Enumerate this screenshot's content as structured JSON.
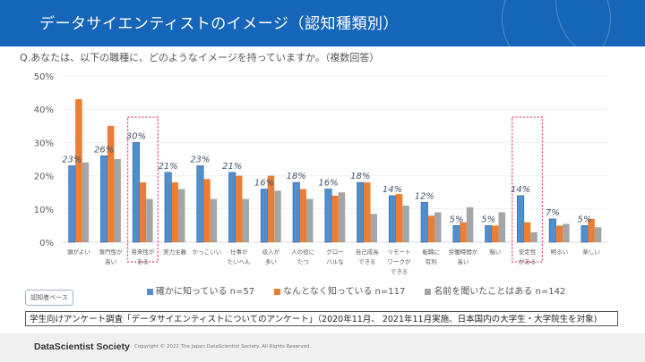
{
  "header": {
    "title": "データサイエンティストのイメージ（認知種類別）"
  },
  "question": "Q.あなたは、以下の職種に、どのようなイメージを持っていますか。（複数回答）",
  "chart_data": {
    "type": "bar",
    "title": "",
    "xlabel": "",
    "ylabel": "",
    "ylim": [
      0,
      50
    ],
    "yticks": [
      "0%",
      "10%",
      "20%",
      "30%",
      "40%",
      "50%"
    ],
    "grid": true,
    "legend_position": "bottom",
    "categories": [
      [
        "頭がよい"
      ],
      [
        "専門性が",
        "高い"
      ],
      [
        "将来性が",
        "ある"
      ],
      [
        "実力主義"
      ],
      [
        "かっこいい"
      ],
      [
        "仕事が",
        "たいへん"
      ],
      [
        "収入が",
        "多い"
      ],
      [
        "人の役に",
        "たつ"
      ],
      [
        "グロー",
        "バルな"
      ],
      [
        "自己成長",
        "できる"
      ],
      [
        "リモート",
        "ワークが",
        "できる"
      ],
      [
        "転職に",
        "有利"
      ],
      [
        "労働時間が",
        "長い"
      ],
      [
        "暗い"
      ],
      [
        "安定性",
        "がある"
      ],
      [
        "明るい"
      ],
      [
        "楽しい"
      ]
    ],
    "series": [
      {
        "name": "確かに知っている n=57",
        "color": "#4f8fd0",
        "values": [
          23,
          26,
          30,
          21,
          23,
          21,
          16,
          18,
          16,
          18,
          14,
          12,
          5,
          5,
          14,
          7,
          5
        ]
      },
      {
        "name": "なんとなく知っている n=117",
        "color": "#ed7d31",
        "values": [
          43,
          35,
          18,
          18,
          19,
          20,
          20,
          16,
          14,
          18,
          14.5,
          8,
          6,
          5,
          6,
          5,
          7
        ]
      },
      {
        "name": "名前を聞いたことはある n=142",
        "color": "#a5a5a5",
        "values": [
          24,
          25,
          13,
          16,
          13,
          13,
          15.5,
          13,
          15,
          8.5,
          11,
          9,
          10.5,
          9,
          3,
          5.5,
          4.5
        ]
      }
    ],
    "data_labels": [
      "23%",
      "26%",
      "30%",
      "21%",
      "23%",
      "21%",
      "16%",
      "18%",
      "16%",
      "18%",
      "14%",
      "12%",
      "5%",
      "5%",
      "14%",
      "7%",
      "5%"
    ],
    "highlighted_categories": [
      2,
      14
    ],
    "highlight_color": "#e0457b"
  },
  "basis_label": "認知者ベース",
  "source": "学生向けアンケート調査「データサイエンティストについてのアンケート」（2020年11月、 2021年11月実施、日本国内の大学生・大学院生を対象)",
  "footer": {
    "brand": "DataScientist Society",
    "copyright": "Copyright © 2022 The Japan DataScientist Society. All Rights Reserved."
  }
}
